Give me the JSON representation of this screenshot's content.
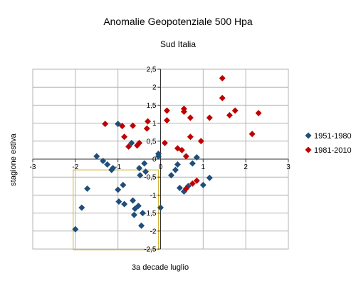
{
  "chart_data": {
    "type": "scatter",
    "title": "Anomalie Geopotenziale 500 Hpa",
    "subtitle": "Sud Italia",
    "xlabel": "3a decade luglio",
    "ylabel": "stagione estiva",
    "xlim": [
      -3,
      3
    ],
    "ylim": [
      -2.5,
      2.5
    ],
    "x_ticks": [
      "-3",
      "-2",
      "-1",
      "0",
      "1",
      "2",
      "3"
    ],
    "y_ticks": [
      "2,5",
      "2",
      "1,5",
      "1",
      "0,5",
      "0",
      "-0,5",
      "-1",
      "-1,5",
      "-2",
      "-2,5"
    ],
    "grid": true,
    "legend_position": "right",
    "highlight_box": {
      "x": [
        -2.05,
        -0.05
      ],
      "y": [
        -2.52,
        -0.3
      ],
      "color": "#d4b437"
    },
    "series": [
      {
        "name": "1951-1980",
        "color": "#1f4e79",
        "marker": "diamond",
        "points": [
          [
            -2.0,
            -1.95
          ],
          [
            -1.85,
            -1.35
          ],
          [
            -1.72,
            -0.82
          ],
          [
            -1.5,
            0.08
          ],
          [
            -1.35,
            -0.05
          ],
          [
            -1.25,
            -0.15
          ],
          [
            -1.15,
            -0.3
          ],
          [
            -1.12,
            -0.25
          ],
          [
            -1.0,
            0.98
          ],
          [
            -1.0,
            -0.85
          ],
          [
            -0.98,
            -1.18
          ],
          [
            -0.88,
            -0.72
          ],
          [
            -0.85,
            -1.25
          ],
          [
            -0.68,
            0.45
          ],
          [
            -0.65,
            -1.15
          ],
          [
            -0.62,
            -1.55
          ],
          [
            -0.6,
            -1.38
          ],
          [
            -0.52,
            -1.3
          ],
          [
            -0.48,
            -0.45
          ],
          [
            -0.5,
            -0.25
          ],
          [
            -0.45,
            -1.85
          ],
          [
            -0.42,
            -1.5
          ],
          [
            -0.38,
            -0.12
          ],
          [
            -0.35,
            -0.35
          ],
          [
            -0.05,
            0.15
          ],
          [
            -0.05,
            0.08
          ],
          [
            0.0,
            -1.35
          ],
          [
            0.25,
            -0.45
          ],
          [
            0.35,
            -0.3
          ],
          [
            0.4,
            -0.15
          ],
          [
            0.45,
            -0.8
          ],
          [
            0.55,
            -0.9
          ],
          [
            0.65,
            -0.75
          ],
          [
            0.75,
            -0.12
          ],
          [
            0.85,
            0.05
          ],
          [
            1.0,
            -0.72
          ],
          [
            1.15,
            -0.52
          ]
        ]
      },
      {
        "name": "1981-2010",
        "color": "#c00000",
        "marker": "diamond",
        "points": [
          [
            -1.3,
            0.98
          ],
          [
            -0.9,
            0.92
          ],
          [
            -0.85,
            0.62
          ],
          [
            -0.75,
            0.35
          ],
          [
            -0.65,
            0.93
          ],
          [
            -0.55,
            0.38
          ],
          [
            -0.5,
            0.45
          ],
          [
            -0.32,
            0.85
          ],
          [
            -0.3,
            1.05
          ],
          [
            0.1,
            0.45
          ],
          [
            0.15,
            1.08
          ],
          [
            0.15,
            1.35
          ],
          [
            0.4,
            0.3
          ],
          [
            0.5,
            0.25
          ],
          [
            0.55,
            1.4
          ],
          [
            0.55,
            1.32
          ],
          [
            0.6,
            0.08
          ],
          [
            0.6,
            -0.82
          ],
          [
            0.7,
            0.62
          ],
          [
            0.7,
            1.15
          ],
          [
            0.75,
            -0.68
          ],
          [
            0.85,
            -0.6
          ],
          [
            0.95,
            0.5
          ],
          [
            1.15,
            1.15
          ],
          [
            1.45,
            2.25
          ],
          [
            1.45,
            1.7
          ],
          [
            1.62,
            1.22
          ],
          [
            1.75,
            1.35
          ],
          [
            2.15,
            0.7
          ],
          [
            2.3,
            1.28
          ]
        ]
      }
    ]
  }
}
